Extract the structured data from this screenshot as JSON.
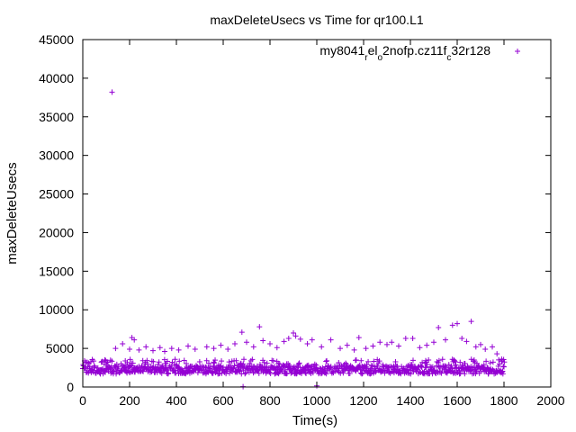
{
  "chart_data": {
    "type": "scatter",
    "title": "maxDeleteUsecs vs Time for qr100.L1",
    "xlabel": "Time(s)",
    "ylabel": "maxDeleteUsecs",
    "xlim": [
      0,
      2000
    ],
    "ylim": [
      0,
      45000
    ],
    "x_ticks": [
      0,
      200,
      400,
      600,
      800,
      1000,
      1200,
      1400,
      1600,
      1800,
      2000
    ],
    "y_ticks": [
      0,
      5000,
      10000,
      15000,
      20000,
      25000,
      30000,
      35000,
      40000,
      45000
    ],
    "grid": false,
    "legend_position": "top-right",
    "marker": "+",
    "series": [
      {
        "name": "my8041_rel_o2nofp.cz11f_c32r128",
        "color": "#9400d3",
        "baseline_range": [
          1700,
          3600
        ],
        "points": [
          [
            125,
            38200
          ],
          [
            140,
            5000
          ],
          [
            170,
            5600
          ],
          [
            200,
            4900
          ],
          [
            210,
            6400
          ],
          [
            220,
            6100
          ],
          [
            240,
            4800
          ],
          [
            270,
            5200
          ],
          [
            300,
            4700
          ],
          [
            330,
            5100
          ],
          [
            350,
            4600
          ],
          [
            380,
            5000
          ],
          [
            410,
            4800
          ],
          [
            450,
            5300
          ],
          [
            480,
            4900
          ],
          [
            530,
            5200
          ],
          [
            560,
            5000
          ],
          [
            590,
            5400
          ],
          [
            620,
            4900
          ],
          [
            650,
            5600
          ],
          [
            680,
            7100
          ],
          [
            685,
            50
          ],
          [
            700,
            5800
          ],
          [
            730,
            5200
          ],
          [
            755,
            7800
          ],
          [
            770,
            6000
          ],
          [
            800,
            5600
          ],
          [
            830,
            5100
          ],
          [
            860,
            5900
          ],
          [
            880,
            6300
          ],
          [
            900,
            7000
          ],
          [
            910,
            6600
          ],
          [
            930,
            6200
          ],
          [
            960,
            5600
          ],
          [
            980,
            6100
          ],
          [
            1000,
            150
          ],
          [
            1020,
            5200
          ],
          [
            1060,
            6100
          ],
          [
            1100,
            5000
          ],
          [
            1130,
            5400
          ],
          [
            1160,
            4800
          ],
          [
            1180,
            6400
          ],
          [
            1210,
            5000
          ],
          [
            1240,
            5300
          ],
          [
            1270,
            5800
          ],
          [
            1300,
            5500
          ],
          [
            1320,
            5800
          ],
          [
            1350,
            5300
          ],
          [
            1380,
            6300
          ],
          [
            1410,
            6300
          ],
          [
            1440,
            5100
          ],
          [
            1470,
            5400
          ],
          [
            1500,
            5800
          ],
          [
            1520,
            7700
          ],
          [
            1550,
            6100
          ],
          [
            1580,
            8000
          ],
          [
            1600,
            8200
          ],
          [
            1620,
            6300
          ],
          [
            1640,
            5900
          ],
          [
            1660,
            8500
          ],
          [
            1680,
            5200
          ],
          [
            1700,
            5500
          ],
          [
            1720,
            4900
          ],
          [
            1750,
            5200
          ],
          [
            1770,
            4300
          ],
          [
            1790,
            3600
          ]
        ]
      }
    ]
  }
}
